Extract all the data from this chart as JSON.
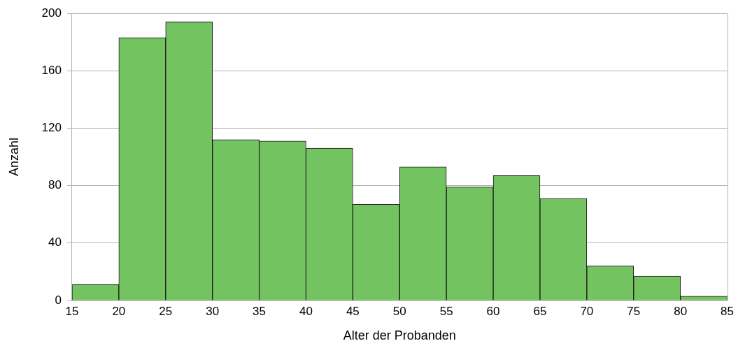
{
  "chart_data": {
    "type": "histogram",
    "xlabel": "Alter der Probanden",
    "ylabel": "Anzahl",
    "bins": [
      15,
      20,
      25,
      30,
      35,
      40,
      45,
      50,
      55,
      60,
      65,
      70,
      75,
      80,
      85
    ],
    "values": [
      11,
      183,
      194,
      112,
      111,
      106,
      67,
      93,
      79,
      87,
      71,
      24,
      17,
      3
    ],
    "color": "#73c361",
    "xlim": [
      15,
      85
    ],
    "xticks": [
      15,
      20,
      25,
      30,
      35,
      40,
      45,
      50,
      55,
      60,
      65,
      70,
      75,
      80,
      85
    ],
    "ylim": [
      0,
      200
    ],
    "yticks": [
      0,
      40,
      80,
      120,
      160,
      200
    ],
    "grid": "y"
  }
}
